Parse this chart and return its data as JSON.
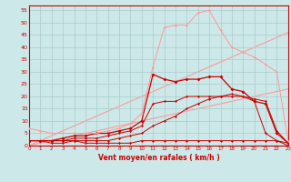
{
  "xlabel": "Vent moyen/en rafales ( km/h )",
  "xlim": [
    0,
    23
  ],
  "ylim": [
    0,
    57
  ],
  "yticks": [
    0,
    5,
    10,
    15,
    20,
    25,
    30,
    35,
    40,
    45,
    50,
    55
  ],
  "xticks": [
    0,
    1,
    2,
    3,
    4,
    5,
    6,
    7,
    8,
    9,
    10,
    11,
    12,
    13,
    14,
    15,
    16,
    17,
    18,
    19,
    20,
    21,
    22,
    23
  ],
  "bg_color": "#cce8e8",
  "grid_color": "#aacccc",
  "line1": {
    "x": [
      0,
      1,
      2,
      3,
      4,
      5,
      6,
      7,
      8,
      9,
      10,
      11,
      12,
      13,
      14,
      15,
      16,
      17,
      18,
      19,
      20,
      21,
      22,
      23
    ],
    "y": [
      2,
      2,
      1,
      1,
      2,
      1,
      1,
      1,
      1,
      1,
      2,
      2,
      2,
      2,
      2,
      2,
      2,
      2,
      2,
      2,
      2,
      2,
      2,
      1
    ],
    "color": "#cc0000",
    "lw": 0.7,
    "ms": 1.5
  },
  "line2": {
    "x": [
      0,
      1,
      2,
      3,
      4,
      5,
      6,
      7,
      8,
      9,
      10,
      11,
      12,
      13,
      14,
      15,
      16,
      17,
      18,
      19,
      20,
      21,
      22,
      23
    ],
    "y": [
      2,
      2,
      2,
      2,
      3,
      3,
      3,
      4,
      5,
      6,
      8,
      17,
      18,
      18,
      20,
      20,
      20,
      20,
      20,
      20,
      19,
      18,
      6,
      1
    ],
    "color": "#cc0000",
    "lw": 0.7,
    "ms": 1.5
  },
  "line3": {
    "x": [
      0,
      1,
      2,
      3,
      4,
      5,
      6,
      7,
      8,
      9,
      10,
      11,
      12,
      13,
      14,
      15,
      16,
      17,
      18,
      19,
      20,
      21,
      22,
      23
    ],
    "y": [
      2,
      2,
      2,
      3,
      4,
      4,
      5,
      5,
      6,
      7,
      10,
      29,
      27,
      26,
      27,
      27,
      28,
      28,
      23,
      22,
      18,
      17,
      5,
      1
    ],
    "color": "#cc0000",
    "lw": 0.9,
    "ms": 2.0
  },
  "line4": {
    "x": [
      0,
      1,
      2,
      3,
      4,
      5,
      6,
      7,
      8,
      9,
      10,
      11,
      12,
      13,
      14,
      15,
      16,
      17,
      18,
      19,
      20,
      21,
      22,
      23
    ],
    "y": [
      7,
      6,
      5,
      5,
      5,
      5,
      5,
      6,
      7,
      9,
      13,
      32,
      48,
      49,
      49,
      54,
      55,
      47,
      40,
      38,
      36,
      33,
      30,
      2
    ],
    "color": "#ff9999",
    "lw": 0.7,
    "ms": 1.5
  },
  "line5": {
    "x": [
      0,
      1,
      2,
      3,
      4,
      5,
      6,
      7,
      8,
      9,
      10,
      11,
      12,
      13,
      14,
      15,
      16,
      17,
      18,
      19,
      20,
      21,
      22,
      23
    ],
    "y": [
      2,
      2,
      2,
      2,
      2,
      2,
      2,
      2,
      3,
      4,
      5,
      8,
      10,
      12,
      15,
      17,
      19,
      20,
      21,
      20,
      18,
      5,
      2,
      0
    ],
    "color": "#cc0000",
    "lw": 0.7,
    "ms": 1.5
  },
  "line_diag1": {
    "x": [
      0,
      23
    ],
    "y": [
      0,
      46
    ],
    "color": "#ff9999",
    "lw": 0.8
  },
  "line_diag2": {
    "x": [
      0,
      23
    ],
    "y": [
      0,
      23
    ],
    "color": "#ff9999",
    "lw": 0.8
  }
}
